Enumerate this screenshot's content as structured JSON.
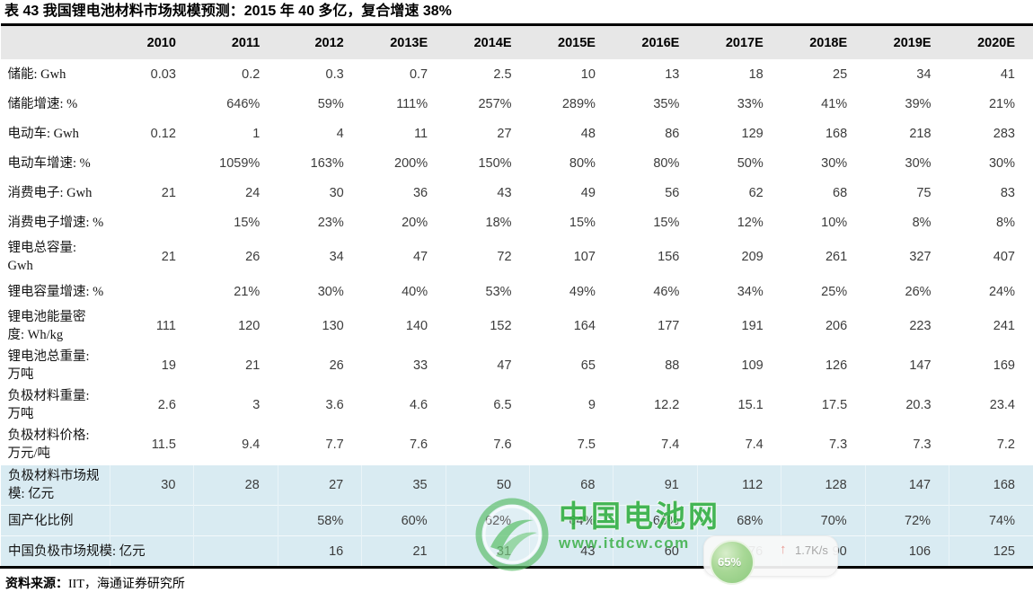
{
  "title": "表 43  我国锂电池材料市场规模预测：2015 年 40 多亿，复合增速 38%",
  "table": {
    "columns": [
      "2010",
      "2011",
      "2012",
      "2013E",
      "2014E",
      "2015E",
      "2016E",
      "2017E",
      "2018E",
      "2019E",
      "2020E"
    ],
    "rows": [
      {
        "label": "储能: Gwh",
        "values": [
          "0.03",
          "0.2",
          "0.3",
          "0.7",
          "2.5",
          "10",
          "13",
          "18",
          "25",
          "34",
          "41"
        ],
        "highlight": false
      },
      {
        "label": "储能增速: %",
        "values": [
          "",
          "646%",
          "59%",
          "111%",
          "257%",
          "289%",
          "35%",
          "33%",
          "41%",
          "39%",
          "21%"
        ],
        "highlight": false
      },
      {
        "label": "电动车: Gwh",
        "values": [
          "0.12",
          "1",
          "4",
          "11",
          "27",
          "48",
          "86",
          "129",
          "168",
          "218",
          "283"
        ],
        "highlight": false
      },
      {
        "label": "电动车增速: %",
        "values": [
          "",
          "1059%",
          "163%",
          "200%",
          "150%",
          "80%",
          "80%",
          "50%",
          "30%",
          "30%",
          "30%"
        ],
        "highlight": false
      },
      {
        "label": "消费电子: Gwh",
        "values": [
          "21",
          "24",
          "30",
          "36",
          "43",
          "49",
          "56",
          "62",
          "68",
          "75",
          "83"
        ],
        "highlight": false
      },
      {
        "label": "消费电子增速: %",
        "values": [
          "",
          "15%",
          "23%",
          "20%",
          "18%",
          "15%",
          "15%",
          "12%",
          "10%",
          "8%",
          "8%"
        ],
        "highlight": false
      },
      {
        "label": "锂电总容量:\nGwh",
        "values": [
          "21",
          "26",
          "34",
          "47",
          "72",
          "107",
          "156",
          "209",
          "261",
          "327",
          "407"
        ],
        "highlight": false
      },
      {
        "label": "锂电容量增速: %",
        "values": [
          "",
          "21%",
          "30%",
          "40%",
          "53%",
          "49%",
          "46%",
          "34%",
          "25%",
          "26%",
          "24%"
        ],
        "highlight": false
      },
      {
        "label": "锂电池能量密\n度: Wh/kg",
        "values": [
          "111",
          "120",
          "130",
          "140",
          "152",
          "164",
          "177",
          "191",
          "206",
          "223",
          "241"
        ],
        "highlight": false
      },
      {
        "label": "锂电池总重量:\n万吨",
        "values": [
          "19",
          "21",
          "26",
          "33",
          "47",
          "65",
          "88",
          "109",
          "126",
          "147",
          "169"
        ],
        "highlight": false
      },
      {
        "label": "负极材料重量:\n万吨",
        "values": [
          "2.6",
          "3",
          "3.6",
          "4.6",
          "6.5",
          "9",
          "12.2",
          "15.1",
          "17.5",
          "20.3",
          "23.4"
        ],
        "highlight": false
      },
      {
        "label": "负极材料价格:\n万元/吨",
        "values": [
          "11.5",
          "9.4",
          "7.7",
          "7.6",
          "7.6",
          "7.5",
          "7.4",
          "7.4",
          "7.3",
          "7.3",
          "7.2"
        ],
        "highlight": false
      },
      {
        "label": "负极材料市场规\n模: 亿元",
        "values": [
          "30",
          "28",
          "27",
          "35",
          "50",
          "68",
          "91",
          "112",
          "128",
          "147",
          "168"
        ],
        "highlight": true
      },
      {
        "label": "国产化比例",
        "values": [
          "",
          "",
          "58%",
          "60%",
          "62%",
          "64%",
          "66%",
          "68%",
          "70%",
          "72%",
          "74%"
        ],
        "highlight": true
      },
      {
        "label": "中国负极市场规模: 亿元",
        "values": [
          "",
          "",
          "16",
          "21",
          "31",
          "43",
          "60",
          "76",
          "90",
          "106",
          "125"
        ],
        "highlight": true,
        "nowrap": true
      }
    ]
  },
  "source": {
    "prefix": "资料来源：",
    "text": "IIT，海通证券研究所"
  },
  "watermark": {
    "name": "中国电池网",
    "url": "www.itdcw.com",
    "green": "#2fae3f"
  },
  "widget": {
    "percent": "65%",
    "speed": "1.7K/s"
  },
  "colors": {
    "header_bg": "#e7e7e7",
    "highlight_bg": "#d9ebf2",
    "border": "#000000"
  }
}
